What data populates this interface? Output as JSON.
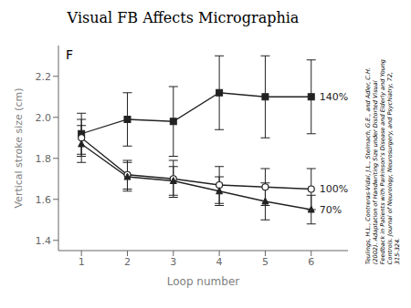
{
  "chart_data": {
    "type": "line",
    "title": "Visual FB Affects Micrographia",
    "x_label": "Loop number",
    "y_label": "Vertical stroke size (cm)",
    "annotations": [
      "F",
      "Teulings, H.L., Contreras-Vidal, J.L., Stelmach, G.E., and Adler, C.H.",
      "(2002). Adaptation of Handwriting Size under Distorted Visual",
      "Feedback in Patients with Parkinson’s Disease and Elderly and Young",
      "Controls. Journal of Neurology, Neurosurgery, and Psychiatry, 72,",
      "315-324."
    ],
    "x": [
      1,
      2,
      3,
      4,
      5,
      6
    ],
    "xlim": [
      0.5,
      6.8
    ],
    "ylim": [
      1.35,
      2.35
    ],
    "xticks": [
      1,
      2,
      3,
      4,
      5,
      6
    ],
    "yticks": [
      1.4,
      1.6,
      1.8,
      {
        "value": 2.0,
        "label": "2.0"
      },
      2.2
    ],
    "series": [
      {
        "name": "140%",
        "color": "#222222",
        "marker": "square",
        "values": [
          1.92,
          1.99,
          1.98,
          2.12,
          2.1,
          2.1
        ],
        "errors": [
          0.1,
          0.13,
          0.17,
          0.18,
          0.2,
          0.18
        ]
      },
      {
        "name": "100%",
        "color": "#222222",
        "marker": "open_circle",
        "values": [
          1.9,
          1.72,
          1.7,
          1.67,
          1.66,
          1.65
        ],
        "errors": [
          0.09,
          0.07,
          0.09,
          0.09,
          0.09,
          0.1
        ]
      },
      {
        "name": "70%",
        "color": "#222222",
        "marker": "triangle",
        "values": [
          1.87,
          1.71,
          1.69,
          1.64,
          1.59,
          1.55
        ],
        "errors": [
          0.09,
          0.07,
          0.07,
          0.07,
          0.09,
          0.07
        ]
      }
    ]
  }
}
